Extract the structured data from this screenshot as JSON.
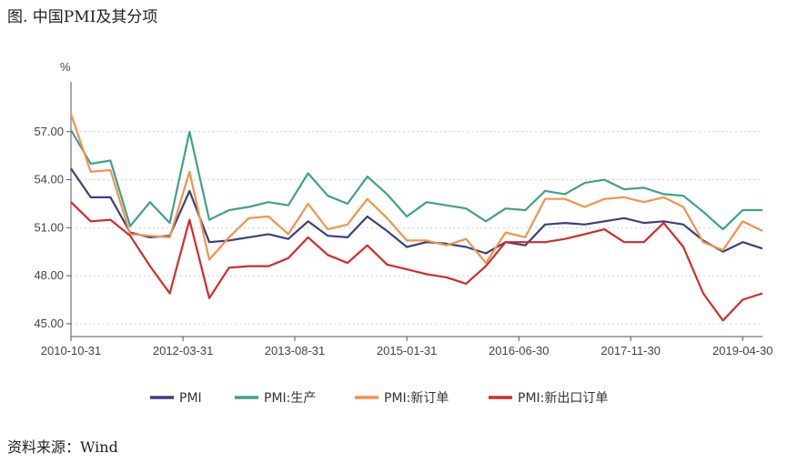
{
  "figure": {
    "title": "图.  中国PMI及其分项",
    "source": "资料来源：Wind"
  },
  "chart_data": {
    "type": "line",
    "unit": "%",
    "x": [
      "2010-10-31",
      "2011-01-31",
      "2011-04-30",
      "2011-07-31",
      "2011-10-31",
      "2012-01-31",
      "2012-04-30",
      "2012-07-31",
      "2012-10-31",
      "2013-01-31",
      "2013-04-30",
      "2013-07-31",
      "2013-10-31",
      "2014-01-31",
      "2014-04-30",
      "2014-07-31",
      "2014-10-31",
      "2015-01-31",
      "2015-04-30",
      "2015-07-31",
      "2015-10-31",
      "2016-01-31",
      "2016-04-30",
      "2016-07-31",
      "2016-10-31",
      "2017-01-31",
      "2017-04-30",
      "2017-07-31",
      "2017-10-31",
      "2018-01-31",
      "2018-04-30",
      "2018-07-31",
      "2018-10-31",
      "2019-01-31",
      "2019-04-30",
      "2019-07-31"
    ],
    "x_tick_labels": [
      "2010-10-31",
      "2012-03-31",
      "2013-08-31",
      "2015-01-31",
      "2016-06-30",
      "2017-11-30",
      "2019-04-30"
    ],
    "x_tick_indices": [
      0,
      5.67,
      11.33,
      17,
      22.67,
      28.33,
      34
    ],
    "y_tick_labels": [
      "45.00",
      "48.00",
      "51.00",
      "54.00",
      "57.00"
    ],
    "ylim": [
      44.2,
      60.0
    ],
    "legend_position": "bottom",
    "series": [
      {
        "name": "PMI",
        "color": "#3d3f7e",
        "values": [
          54.7,
          52.9,
          52.9,
          50.7,
          50.4,
          50.5,
          53.3,
          50.1,
          50.2,
          50.4,
          50.6,
          50.3,
          51.4,
          50.5,
          50.4,
          51.7,
          50.8,
          49.8,
          50.1,
          50.0,
          49.8,
          49.4,
          50.1,
          49.9,
          51.2,
          51.3,
          51.2,
          51.4,
          51.6,
          51.3,
          51.4,
          51.2,
          50.2,
          49.5,
          50.1,
          49.7
        ]
      },
      {
        "name": "PMI:生产",
        "color": "#3fa08c",
        "values": [
          57.1,
          55.0,
          55.2,
          51.1,
          52.6,
          51.3,
          57.0,
          51.5,
          52.1,
          52.3,
          52.6,
          52.4,
          54.4,
          53.0,
          52.5,
          54.2,
          53.1,
          51.7,
          52.6,
          52.4,
          52.2,
          51.4,
          52.2,
          52.1,
          53.3,
          53.1,
          53.8,
          54.0,
          53.4,
          53.5,
          53.1,
          53.0,
          52.0,
          50.9,
          52.1,
          52.1
        ]
      },
      {
        "name": "PMI:新订单",
        "color": "#f4924a",
        "values": [
          58.1,
          54.5,
          54.6,
          50.6,
          50.5,
          50.4,
          54.5,
          49.0,
          50.4,
          51.6,
          51.7,
          50.6,
          52.5,
          50.9,
          51.2,
          52.8,
          51.6,
          50.2,
          50.2,
          49.9,
          50.3,
          48.8,
          50.7,
          50.4,
          52.8,
          52.8,
          52.3,
          52.8,
          52.9,
          52.6,
          52.9,
          52.3,
          50.1,
          49.6,
          51.4,
          50.8
        ]
      },
      {
        "name": "PMI:新出口订单",
        "color": "#d42a2a",
        "values": [
          52.6,
          51.4,
          51.5,
          50.5,
          48.6,
          46.9,
          51.5,
          46.6,
          48.5,
          48.6,
          48.6,
          49.1,
          50.4,
          49.3,
          48.8,
          49.9,
          48.7,
          48.4,
          48.1,
          47.9,
          47.5,
          48.6,
          50.1,
          50.1,
          50.1,
          50.3,
          50.6,
          50.9,
          50.1,
          50.1,
          51.3,
          49.8,
          46.9,
          45.2,
          46.5,
          46.9
        ]
      }
    ]
  }
}
